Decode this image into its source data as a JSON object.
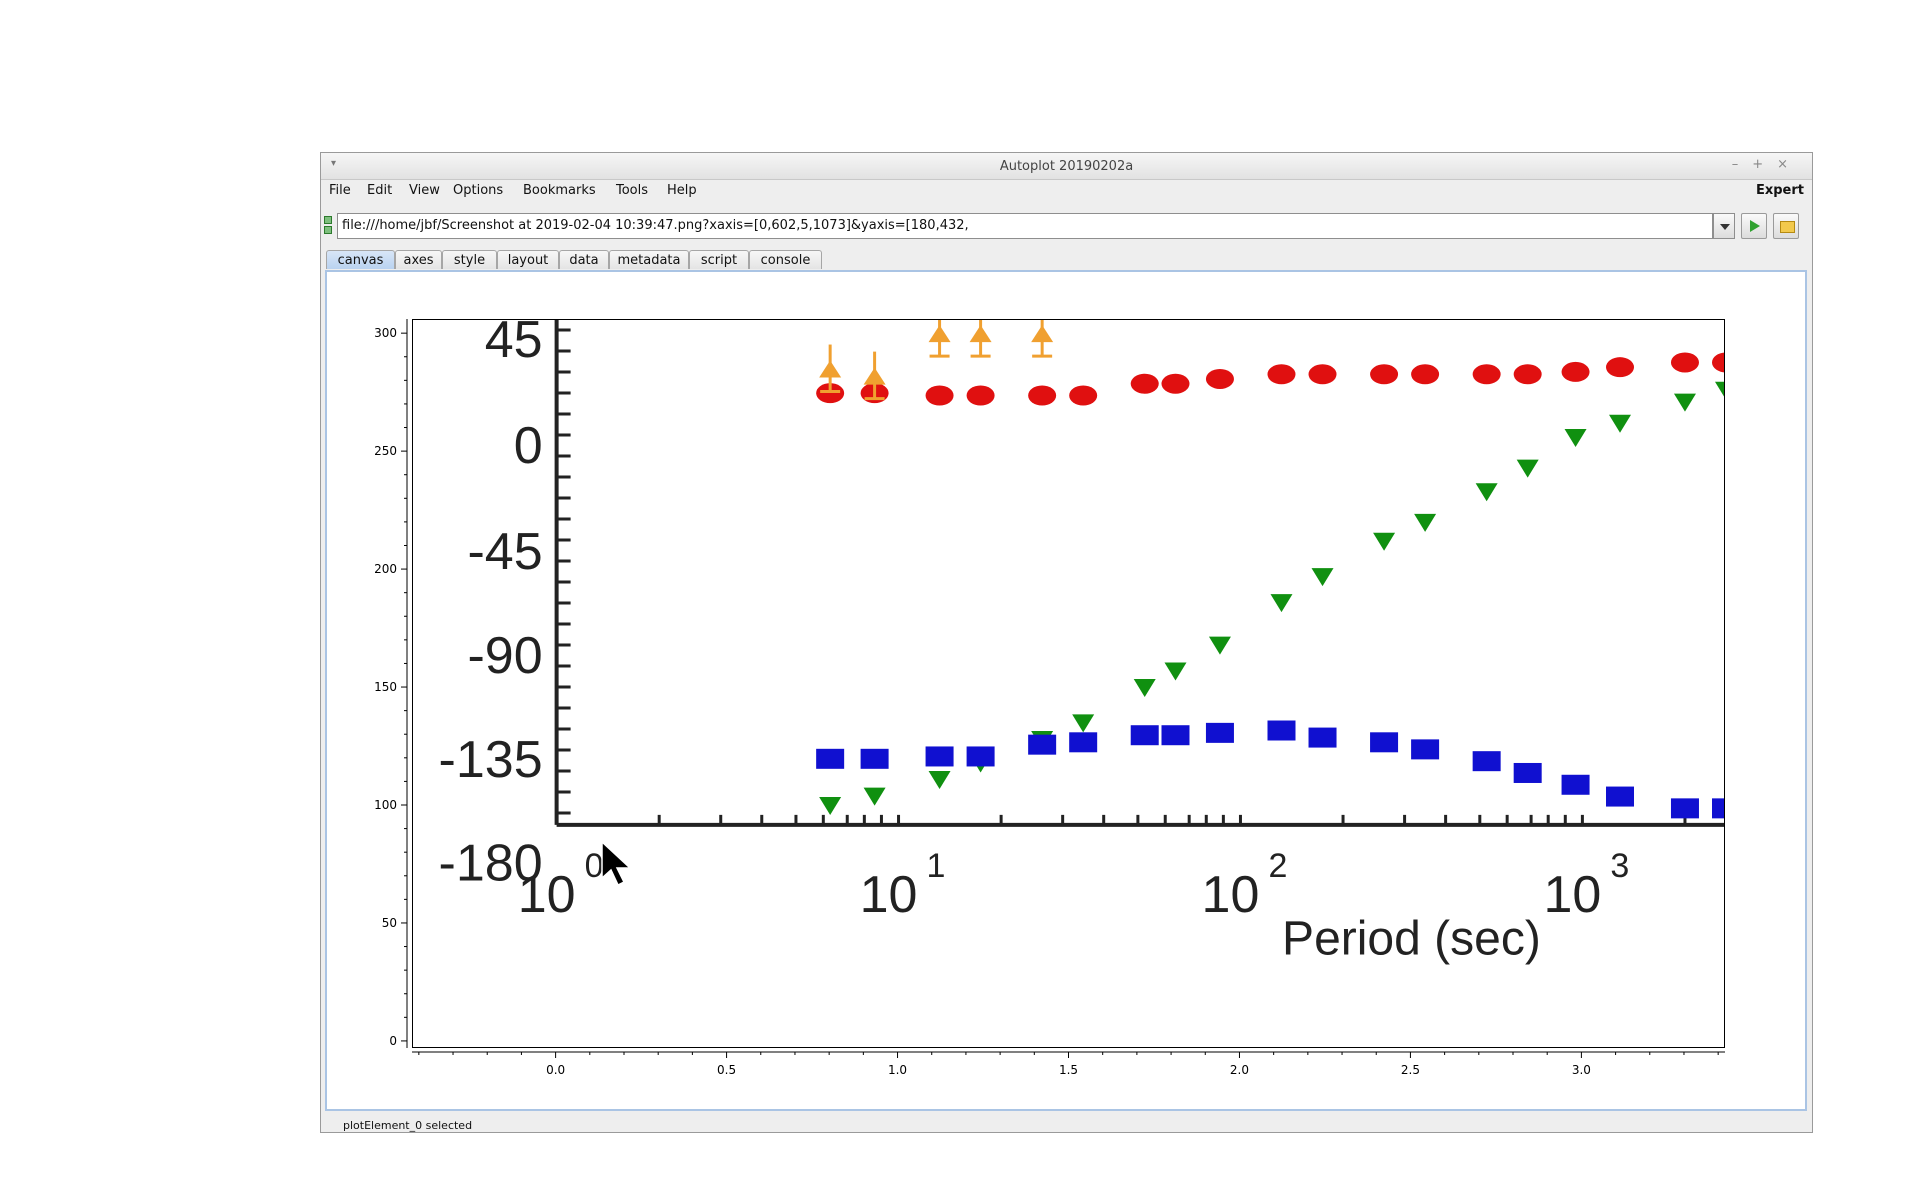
{
  "window": {
    "title": "Autoplot 20190202a",
    "menu_icon": "window-menu-icon",
    "controls": [
      "minimize-icon",
      "maximize-icon",
      "close-icon"
    ]
  },
  "menubar": {
    "items": [
      "File",
      "Edit",
      "View",
      "Options",
      "Bookmarks",
      "Tools",
      "Help"
    ],
    "expert_label": "Expert"
  },
  "address": {
    "value": "file:///home/jbf/Screenshot at 2019-02-04 10:39:47.png?xaxis=[0,602,5,1073]&yaxis=[180,432,"
  },
  "tabs": [
    "canvas",
    "axes",
    "style",
    "layout",
    "data",
    "metadata",
    "script",
    "console"
  ],
  "active_tab": "canvas",
  "status_text": "plotElement_0 selected",
  "chart_data": {
    "type": "image",
    "x_ticks": [
      "0.0",
      "0.5",
      "1.0",
      "1.5",
      "2.0",
      "2.5",
      "3.0"
    ],
    "y_ticks": [
      "0",
      "50",
      "100",
      "150",
      "200",
      "250",
      "300"
    ],
    "xlim": [
      -0.42,
      3.42
    ],
    "ylim": [
      -3,
      306
    ],
    "image_content": {
      "y_labels": [
        "45",
        "0",
        "-45",
        "-90",
        "-135",
        "-180"
      ],
      "x_labels": [
        "10",
        "10",
        "10",
        "10"
      ],
      "x_label_exponents": [
        "0",
        "1",
        "2",
        "3"
      ],
      "xlabel": "Period (sec)",
      "series": [
        {
          "color": "#e01010",
          "marker": "circle",
          "points": [
            [
              0.8,
              275
            ],
            [
              0.93,
              275
            ],
            [
              1.12,
              274
            ],
            [
              1.24,
              274
            ],
            [
              1.42,
              274
            ],
            [
              1.54,
              274
            ],
            [
              1.72,
              279
            ],
            [
              1.81,
              279
            ],
            [
              1.94,
              281
            ],
            [
              2.12,
              283
            ],
            [
              2.24,
              283
            ],
            [
              2.42,
              283
            ],
            [
              2.54,
              283
            ],
            [
              2.72,
              283
            ],
            [
              2.84,
              283
            ],
            [
              2.98,
              284
            ],
            [
              3.11,
              286
            ],
            [
              3.3,
              288
            ],
            [
              3.42,
              288
            ]
          ]
        },
        {
          "color": "#109010",
          "marker": "triangle-down",
          "points": [
            [
              0.8,
              100
            ],
            [
              0.93,
              104
            ],
            [
              1.12,
              111
            ],
            [
              1.24,
              118
            ],
            [
              1.42,
              128
            ],
            [
              1.54,
              135
            ],
            [
              1.72,
              150
            ],
            [
              1.81,
              157
            ],
            [
              1.94,
              168
            ],
            [
              2.12,
              186
            ],
            [
              2.24,
              197
            ],
            [
              2.42,
              212
            ],
            [
              2.54,
              220
            ],
            [
              2.72,
              233
            ],
            [
              2.84,
              243
            ],
            [
              2.98,
              256
            ],
            [
              3.11,
              262
            ],
            [
              3.3,
              271
            ],
            [
              3.42,
              276
            ]
          ]
        },
        {
          "color": "#1010d0",
          "marker": "square",
          "points": [
            [
              0.8,
              120
            ],
            [
              0.93,
              120
            ],
            [
              1.12,
              121
            ],
            [
              1.24,
              121
            ],
            [
              1.42,
              126
            ],
            [
              1.54,
              127
            ],
            [
              1.72,
              130
            ],
            [
              1.81,
              130
            ],
            [
              1.94,
              131
            ],
            [
              2.12,
              132
            ],
            [
              2.24,
              129
            ],
            [
              2.42,
              127
            ],
            [
              2.54,
              124
            ],
            [
              2.72,
              119
            ],
            [
              2.84,
              114
            ],
            [
              2.98,
              109
            ],
            [
              3.11,
              104
            ],
            [
              3.3,
              99
            ],
            [
              3.42,
              99
            ]
          ]
        },
        {
          "color": "#f0a030",
          "marker": "triangle-up",
          "points": [
            [
              0.8,
              285
            ],
            [
              0.93,
              282
            ],
            [
              1.12,
              300
            ],
            [
              1.24,
              300
            ],
            [
              1.42,
              300
            ]
          ]
        }
      ]
    }
  }
}
